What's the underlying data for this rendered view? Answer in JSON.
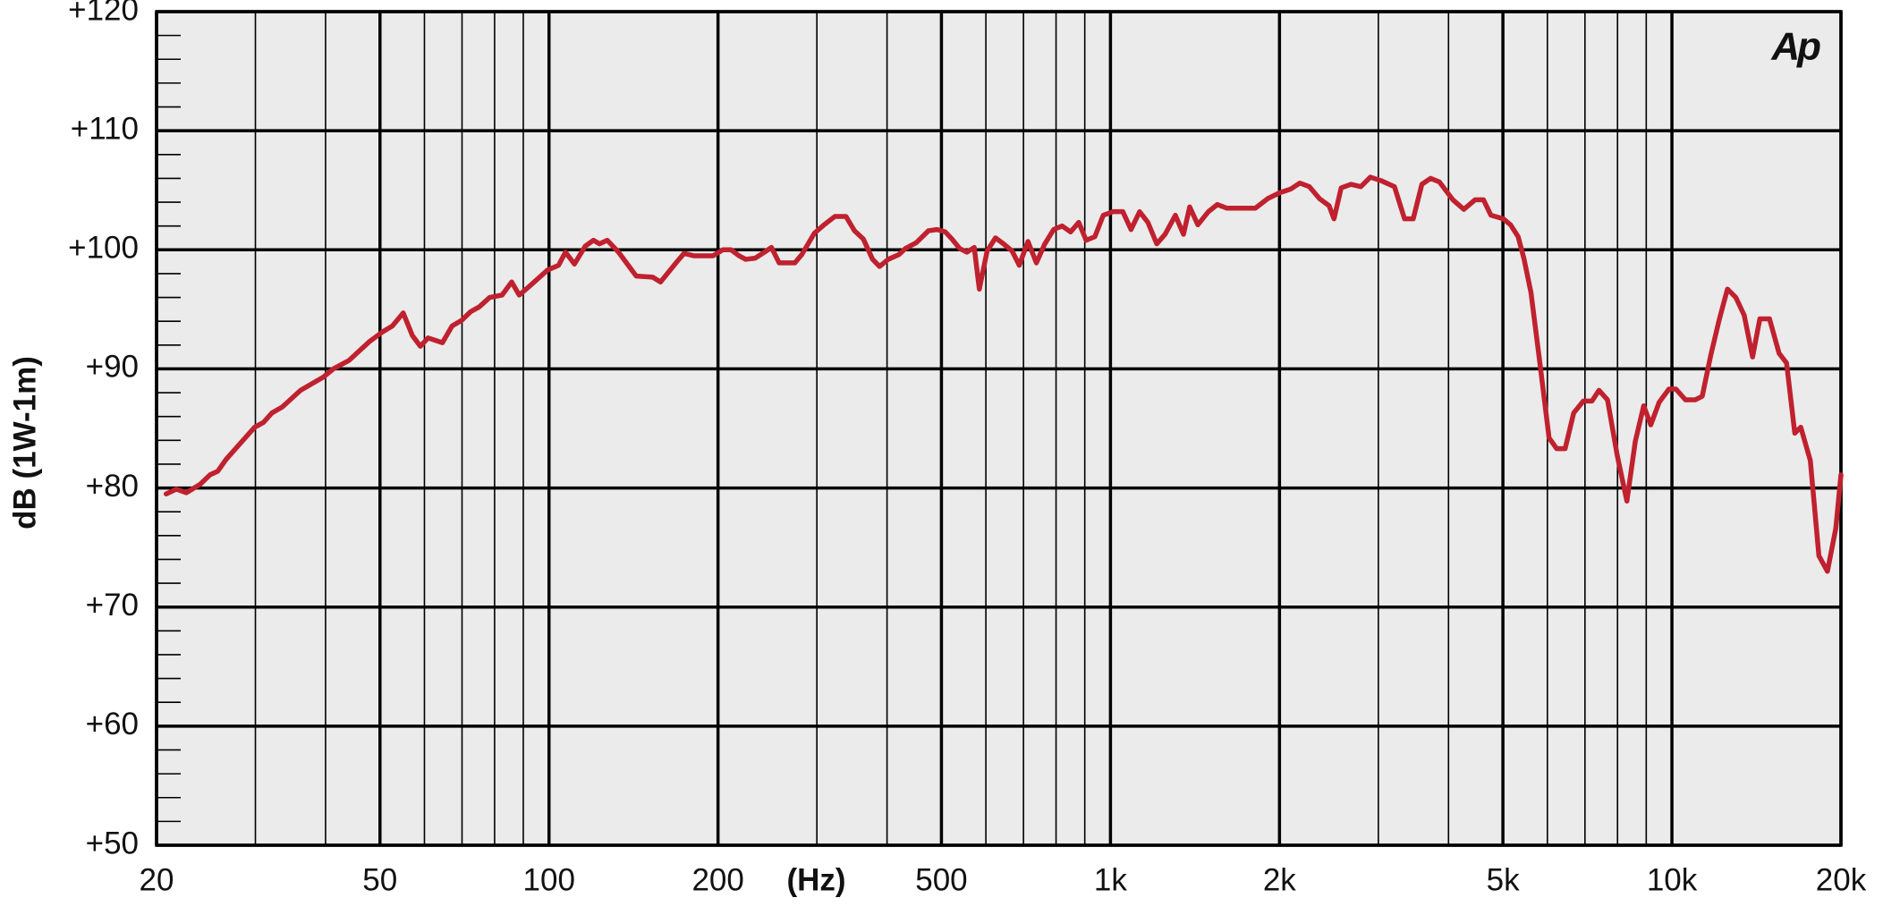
{
  "chart_data": {
    "type": "line",
    "xlabel": "(Hz)",
    "ylabel": "dB (1W-1m)",
    "logo": "Ap",
    "xscale": "log",
    "grid": true,
    "xlim": [
      20,
      20000
    ],
    "ylim": [
      50,
      120
    ],
    "xticks": [
      20,
      50,
      100,
      200,
      500,
      {
        "value": 1000,
        "label": "1k"
      },
      {
        "value": 2000,
        "label": "2k"
      },
      {
        "value": 5000,
        "label": "5k"
      },
      {
        "value": 10000,
        "label": "10k"
      },
      {
        "value": 20000,
        "label": "20k"
      }
    ],
    "x_minor_ticks": [
      30,
      40,
      60,
      70,
      80,
      90,
      300,
      400,
      600,
      700,
      800,
      900,
      3000,
      4000,
      6000,
      7000,
      8000,
      9000
    ],
    "yticks": [
      {
        "value": 50,
        "label": "+50"
      },
      {
        "value": 60,
        "label": "+60"
      },
      {
        "value": 70,
        "label": "+70"
      },
      {
        "value": 80,
        "label": "+80"
      },
      {
        "value": 90,
        "label": "+90"
      },
      {
        "value": 100,
        "label": "+100"
      },
      {
        "value": 110,
        "label": "+110"
      },
      {
        "value": 120,
        "label": "+120"
      }
    ],
    "y_minor_ticks": [
      52,
      54,
      56,
      58,
      62,
      64,
      66,
      68,
      72,
      74,
      76,
      78,
      82,
      84,
      86,
      88,
      92,
      94,
      96,
      98,
      102,
      104,
      106,
      108,
      112,
      114,
      116,
      118
    ],
    "x": [
      20.8,
      21.7,
      22.6,
      23.9,
      24.9,
      25.7,
      26.6,
      29.9,
      31.0,
      32.1,
      33.5,
      36.1,
      39.6,
      41.3,
      44.0,
      47.9,
      50.5,
      52.6,
      55.0,
      57.1,
      59.0,
      60.9,
      64.6,
      67.2,
      70.0,
      72.5,
      75.1,
      78.4,
      82.5,
      85.8,
      88.5,
      92.1,
      99.4,
      104,
      107,
      111,
      116,
      120,
      123,
      127,
      133,
      143,
      153,
      158,
      169,
      174,
      181,
      196,
      204,
      211,
      218,
      224,
      233,
      242,
      249,
      257,
      274,
      282,
      297,
      309,
      323,
      338,
      350,
      363,
      377,
      388,
      402,
      420,
      431,
      451,
      474,
      491,
      508,
      522,
      539,
      555,
      572,
      584,
      603,
      624,
      645,
      668,
      688,
      713,
      738,
      764,
      792,
      820,
      849,
      878,
      905,
      938,
      971,
      1010,
      1052,
      1088,
      1127,
      1166,
      1209,
      1251,
      1305,
      1349,
      1384,
      1431,
      1494,
      1550,
      1611,
      1812,
      1906,
      2004,
      2094,
      2174,
      2261,
      2356,
      2451,
      2501,
      2576,
      2681,
      2792,
      2903,
      3036,
      3205,
      3340,
      3461,
      3586,
      3717,
      3853,
      4072,
      4260,
      4461,
      4617,
      4760,
      5008,
      5159,
      5322,
      5448,
      5610,
      5811,
      6042,
      6234,
      6453,
      6684,
      6954,
      7204,
      7414,
      7678,
      7993,
      8313,
      8604,
      8906,
      9169,
      9490,
      9876,
      10167,
      10572,
      11000,
      11322,
      11720,
      12136,
      12557,
      12996,
      13450,
      13920,
      14340,
      14920,
      15520,
      16000,
      16550,
      16960,
      17640,
      18270,
      18920,
      19580,
      20000
    ],
    "series": [
      {
        "color": "#c0212f",
        "values": [
          79.5,
          79.9,
          79.6,
          80.3,
          81.1,
          81.4,
          82.4,
          85.1,
          85.5,
          86.3,
          86.8,
          88.2,
          89.3,
          90.0,
          90.7,
          92.3,
          93.1,
          93.6,
          94.7,
          92.8,
          91.9,
          92.6,
          92.2,
          93.6,
          94.1,
          94.8,
          95.2,
          96.0,
          96.2,
          97.3,
          96.2,
          96.9,
          98.3,
          98.7,
          99.8,
          98.8,
          100.3,
          100.8,
          100.5,
          100.8,
          99.8,
          97.8,
          97.7,
          97.3,
          99.0,
          99.7,
          99.5,
          99.5,
          100.0,
          100.0,
          99.5,
          99.2,
          99.3,
          99.8,
          100.2,
          98.9,
          98.9,
          99.6,
          101.4,
          102.1,
          102.8,
          102.8,
          101.6,
          100.9,
          99.2,
          98.6,
          99.2,
          99.6,
          100.1,
          100.6,
          101.6,
          101.7,
          101.5,
          100.9,
          100.1,
          99.8,
          100.2,
          96.7,
          99.9,
          101.0,
          100.5,
          99.9,
          98.7,
          100.7,
          98.9,
          100.5,
          101.7,
          102.0,
          101.5,
          102.3,
          100.8,
          101.1,
          102.9,
          103.2,
          103.2,
          101.7,
          103.2,
          102.3,
          100.5,
          101.3,
          102.9,
          101.3,
          103.6,
          102.1,
          103.2,
          103.8,
          103.5,
          103.5,
          104.3,
          104.8,
          105.1,
          105.6,
          105.3,
          104.3,
          103.7,
          102.6,
          105.2,
          105.5,
          105.3,
          106.1,
          105.8,
          105.3,
          102.6,
          102.6,
          105.5,
          106.0,
          105.7,
          104.2,
          103.4,
          104.2,
          104.2,
          102.9,
          102.6,
          102.1,
          101.1,
          99.3,
          96.4,
          90.7,
          84.2,
          83.3,
          83.3,
          86.3,
          87.3,
          87.3,
          88.2,
          87.4,
          82.7,
          78.9,
          83.9,
          86.9,
          85.3,
          87.2,
          88.3,
          88.3,
          87.4,
          87.4,
          87.7,
          91.1,
          94.1,
          96.7,
          96.0,
          94.5,
          91.0,
          94.2,
          94.2,
          91.3,
          90.5,
          84.6,
          85.1,
          82.3,
          74.3,
          73.0,
          76.6,
          81.1
        ]
      }
    ]
  }
}
